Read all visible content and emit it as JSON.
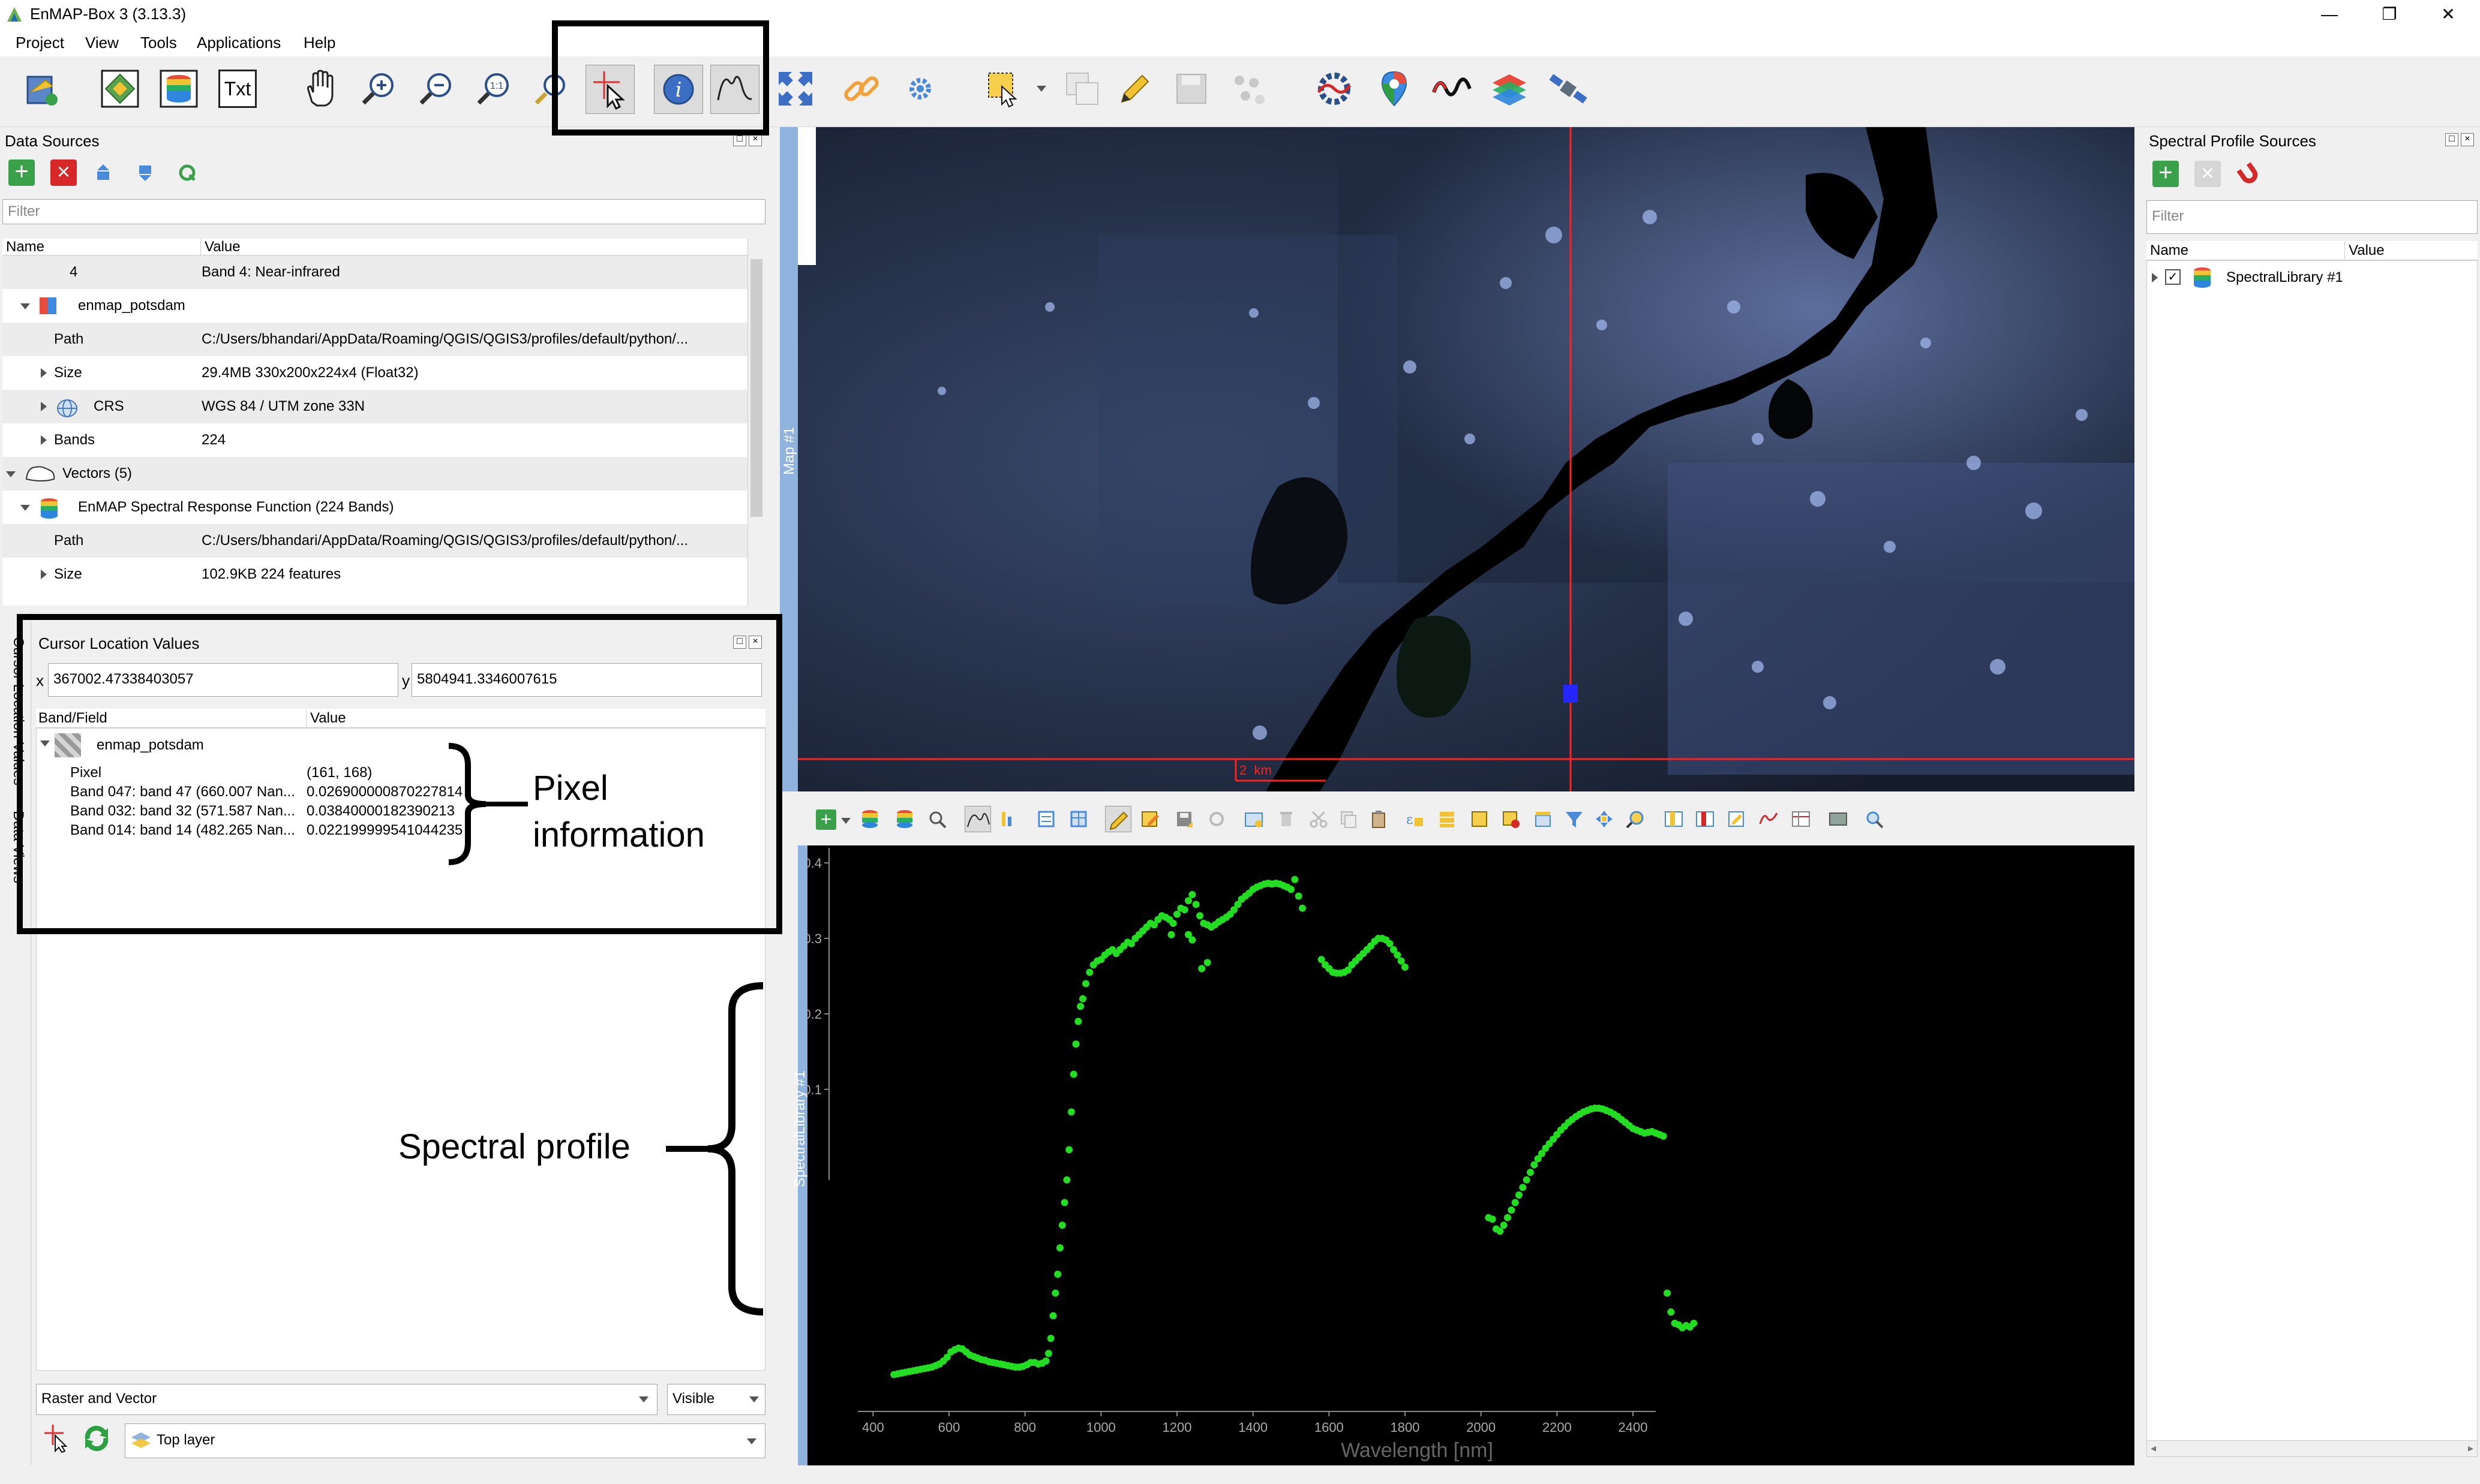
{
  "window": {
    "title": "EnMAP-Box 3 (3.13.3)",
    "controls": [
      "—",
      "❐",
      "✕"
    ]
  },
  "menu": [
    "Project",
    "View",
    "Tools",
    "Applications",
    "Help"
  ],
  "toolbar": {
    "txt_label": "Txt"
  },
  "data_sources": {
    "title": "Data Sources",
    "filter_placeholder": "Filter",
    "columns": [
      "Name",
      "Value"
    ],
    "rows": [
      {
        "name": "4",
        "value": "Band 4: Near-infrared"
      },
      {
        "name": "enmap_potsdam",
        "value": ""
      },
      {
        "name": "Path",
        "value": "C:/Users/bhandari/AppData/Roaming/QGIS/QGIS3/profiles/default/python/..."
      },
      {
        "name": "Size",
        "value": "29.4MB 330x200x224x4 (Float32)"
      },
      {
        "name": "CRS",
        "value": "WGS 84 / UTM zone 33N"
      },
      {
        "name": "Bands",
        "value": "224"
      },
      {
        "name": "Vectors (5)",
        "value": ""
      },
      {
        "name": "EnMAP Spectral Response Function (224 Bands)",
        "value": ""
      },
      {
        "name": "Path",
        "value": "C:/Users/bhandari/AppData/Roaming/QGIS/QGIS3/profiles/default/python/..."
      },
      {
        "name": "Size",
        "value": "102.9KB 224 features"
      }
    ]
  },
  "cursor_location": {
    "title": "Cursor Location Values",
    "x_label": "x",
    "x_value": "367002.47338403057",
    "y_label": "y",
    "y_value": "5804941.3346007615",
    "columns": [
      "Band/Field",
      "Value"
    ],
    "layer": "enmap_potsdam",
    "rows": [
      {
        "field": "Pixel",
        "value": "(161, 168)"
      },
      {
        "field": "Band 047: band 47 (660.007 Nan...",
        "value": "0.0269000008702278​14"
      },
      {
        "field": "Band 032: band 32 (571.587 Nan...",
        "value": "0.038400001823902​13"
      },
      {
        "field": "Band 014: band 14 (482.265 Nan...",
        "value": "0.022199999541044235"
      }
    ],
    "mode_select": "Raster and Vector",
    "visibility_select": "Visible",
    "layer_select": "Top layer",
    "side_tabs": [
      "Cursor Location Values",
      "Data Views"
    ]
  },
  "map": {
    "dock_label": "Map #1",
    "scale_label": "2  km"
  },
  "spectral_library": {
    "dock_label": "SpectralLibrary #1",
    "xlabel": "Wavelength [nm]",
    "x_ticks": [
      "400",
      "600",
      "800",
      "1000",
      "1200",
      "1400",
      "1600",
      "1800",
      "2000",
      "2200",
      "2400"
    ],
    "y_ticks": [
      "0.4",
      "0.3",
      "0.2",
      "0.1"
    ]
  },
  "profile_sources": {
    "title": "Spectral Profile Sources",
    "filter_placeholder": "Filter",
    "columns": [
      "Name",
      "Value"
    ],
    "items": [
      "SpectralLibrary #1"
    ]
  },
  "annotations": {
    "pixel_info": [
      "Pixel",
      "information"
    ],
    "spectral_profile": "Spectral profile"
  },
  "chart_data": {
    "type": "scatter",
    "xlabel": "Wavelength [nm]",
    "ylabel": "",
    "xlim": [
      360,
      2580
    ],
    "ylim": [
      -0.33,
      0.42
    ],
    "series": [
      {
        "color": "#22dd22",
        "points": [
          [
            455,
            -0.278
          ],
          [
            465,
            -0.277
          ],
          [
            475,
            -0.276
          ],
          [
            485,
            -0.275
          ],
          [
            495,
            -0.274
          ],
          [
            505,
            -0.273
          ],
          [
            515,
            -0.272
          ],
          [
            525,
            -0.271
          ],
          [
            535,
            -0.27
          ],
          [
            545,
            -0.269
          ],
          [
            555,
            -0.268
          ],
          [
            565,
            -0.266
          ],
          [
            575,
            -0.264
          ],
          [
            585,
            -0.26
          ],
          [
            595,
            -0.255
          ],
          [
            605,
            -0.248
          ],
          [
            615,
            -0.245
          ],
          [
            625,
            -0.243
          ],
          [
            635,
            -0.244
          ],
          [
            645,
            -0.248
          ],
          [
            655,
            -0.252
          ],
          [
            665,
            -0.254
          ],
          [
            675,
            -0.256
          ],
          [
            685,
            -0.258
          ],
          [
            695,
            -0.259
          ],
          [
            705,
            -0.261
          ],
          [
            715,
            -0.262
          ],
          [
            725,
            -0.263
          ],
          [
            735,
            -0.264
          ],
          [
            745,
            -0.265
          ],
          [
            755,
            -0.266
          ],
          [
            765,
            -0.267
          ],
          [
            775,
            -0.268
          ],
          [
            785,
            -0.268
          ],
          [
            795,
            -0.267
          ],
          [
            805,
            -0.265
          ],
          [
            815,
            -0.262
          ],
          [
            825,
            -0.262
          ],
          [
            835,
            -0.264
          ],
          [
            845,
            -0.263
          ],
          [
            855,
            -0.26
          ],
          [
            862,
            -0.25
          ],
          [
            868,
            -0.23
          ],
          [
            874,
            -0.2
          ],
          [
            880,
            -0.17
          ],
          [
            886,
            -0.145
          ],
          [
            892,
            -0.11
          ],
          [
            898,
            -0.08
          ],
          [
            904,
            -0.05
          ],
          [
            910,
            -0.02
          ],
          [
            916,
            0.02
          ],
          [
            922,
            0.07
          ],
          [
            928,
            0.12
          ],
          [
            934,
            0.16
          ],
          [
            940,
            0.19
          ],
          [
            946,
            0.21
          ],
          [
            952,
            0.22
          ],
          [
            960,
            0.24
          ],
          [
            970,
            0.255
          ],
          [
            980,
            0.265
          ],
          [
            990,
            0.27
          ],
          [
            1000,
            0.272
          ],
          [
            1010,
            0.278
          ],
          [
            1020,
            0.282
          ],
          [
            1030,
            0.285
          ],
          [
            1040,
            0.28
          ],
          [
            1050,
            0.285
          ],
          [
            1060,
            0.29
          ],
          [
            1070,
            0.295
          ],
          [
            1080,
            0.293
          ],
          [
            1090,
            0.3
          ],
          [
            1100,
            0.305
          ],
          [
            1110,
            0.31
          ],
          [
            1120,
            0.315
          ],
          [
            1130,
            0.32
          ],
          [
            1140,
            0.318
          ],
          [
            1150,
            0.325
          ],
          [
            1160,
            0.33
          ],
          [
            1170,
            0.328
          ],
          [
            1180,
            0.325
          ],
          [
            1190,
            0.32
          ],
          [
            1200,
            0.332
          ],
          [
            1210,
            0.34
          ],
          [
            1220,
            0.338
          ],
          [
            1230,
            0.35
          ],
          [
            1240,
            0.358
          ],
          [
            1250,
            0.345
          ],
          [
            1260,
            0.33
          ],
          [
            1270,
            0.32
          ],
          [
            1280,
            0.318
          ],
          [
            1290,
            0.315
          ],
          [
            1300,
            0.318
          ],
          [
            1310,
            0.322
          ],
          [
            1320,
            0.325
          ],
          [
            1330,
            0.328
          ],
          [
            1340,
            0.332
          ],
          [
            1350,
            0.338
          ],
          [
            1360,
            0.345
          ],
          [
            1370,
            0.352
          ],
          [
            1380,
            0.356
          ],
          [
            1390,
            0.36
          ],
          [
            1400,
            0.365
          ],
          [
            1410,
            0.368
          ],
          [
            1420,
            0.37
          ],
          [
            1430,
            0.372
          ],
          [
            1440,
            0.373
          ],
          [
            1450,
            0.372
          ],
          [
            1460,
            0.373
          ],
          [
            1470,
            0.372
          ],
          [
            1480,
            0.37
          ],
          [
            1490,
            0.368
          ],
          [
            1500,
            0.365
          ],
          [
            1510,
            0.378
          ],
          [
            1520,
            0.356
          ],
          [
            1530,
            0.34
          ],
          [
            1580,
            0.272
          ],
          [
            1590,
            0.265
          ],
          [
            1600,
            0.26
          ],
          [
            1610,
            0.255
          ],
          [
            1620,
            0.254
          ],
          [
            1630,
            0.254
          ],
          [
            1640,
            0.255
          ],
          [
            1650,
            0.258
          ],
          [
            1660,
            0.265
          ],
          [
            1670,
            0.27
          ],
          [
            1680,
            0.275
          ],
          [
            1690,
            0.28
          ],
          [
            1700,
            0.285
          ],
          [
            1710,
            0.29
          ],
          [
            1720,
            0.296
          ],
          [
            1730,
            0.3
          ],
          [
            1740,
            0.3
          ],
          [
            1750,
            0.298
          ],
          [
            1760,
            0.293
          ],
          [
            1770,
            0.285
          ],
          [
            1780,
            0.278
          ],
          [
            1790,
            0.27
          ],
          [
            1800,
            0.262
          ],
          [
            1240,
            0.298
          ],
          [
            1230,
            0.305
          ],
          [
            1265,
            0.26
          ],
          [
            1280,
            0.268
          ],
          [
            1185,
            0.305
          ],
          [
            2020,
            -0.07
          ],
          [
            2030,
            -0.072
          ],
          [
            2040,
            -0.085
          ],
          [
            2050,
            -0.088
          ],
          [
            2060,
            -0.08
          ],
          [
            2070,
            -0.07
          ],
          [
            2080,
            -0.06
          ],
          [
            2090,
            -0.05
          ],
          [
            2100,
            -0.04
          ],
          [
            2110,
            -0.03
          ],
          [
            2120,
            -0.02
          ],
          [
            2130,
            -0.01
          ],
          [
            2140,
            0.0
          ],
          [
            2150,
            0.008
          ],
          [
            2160,
            0.015
          ],
          [
            2170,
            0.022
          ],
          [
            2180,
            0.028
          ],
          [
            2190,
            0.034
          ],
          [
            2200,
            0.04
          ],
          [
            2210,
            0.046
          ],
          [
            2220,
            0.051
          ],
          [
            2230,
            0.056
          ],
          [
            2240,
            0.06
          ],
          [
            2250,
            0.064
          ],
          [
            2260,
            0.067
          ],
          [
            2270,
            0.07
          ],
          [
            2280,
            0.072
          ],
          [
            2290,
            0.074
          ],
          [
            2300,
            0.075
          ],
          [
            2310,
            0.075
          ],
          [
            2320,
            0.074
          ],
          [
            2330,
            0.072
          ],
          [
            2340,
            0.07
          ],
          [
            2350,
            0.067
          ],
          [
            2360,
            0.064
          ],
          [
            2370,
            0.06
          ],
          [
            2380,
            0.056
          ],
          [
            2390,
            0.052
          ],
          [
            2400,
            0.048
          ],
          [
            2410,
            0.046
          ],
          [
            2420,
            0.044
          ],
          [
            2430,
            0.042
          ],
          [
            2440,
            0.043
          ],
          [
            2450,
            0.044
          ],
          [
            2460,
            0.042
          ],
          [
            2470,
            0.04
          ],
          [
            2480,
            0.038
          ],
          [
            2490,
            -0.17
          ],
          [
            2500,
            -0.195
          ],
          [
            2510,
            -0.21
          ],
          [
            2520,
            -0.212
          ],
          [
            2530,
            -0.216
          ],
          [
            2540,
            -0.213
          ],
          [
            2550,
            -0.215
          ],
          [
            2560,
            -0.21
          ]
        ]
      }
    ]
  }
}
